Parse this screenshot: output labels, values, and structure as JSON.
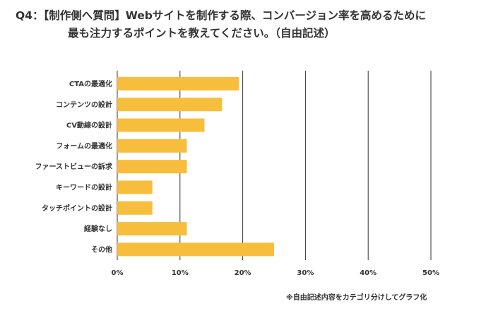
{
  "title": {
    "line1": "Q4：【制作側へ質問】Webサイトを制作する際、コンバージョン率を高めるために",
    "line2": "最も注力するポイントを教えてください。（自由記述）"
  },
  "note": "※自由記述内容をカテゴリ分けしてグラフ化",
  "colors": {
    "bar": "#F6BE3C",
    "grid": "#333333"
  },
  "chart_data": {
    "type": "bar",
    "orientation": "horizontal",
    "categories": [
      "CTAの最適化",
      "コンテンツの設計",
      "CV動線の設計",
      "フォームの最適化",
      "ファーストビューの訴求",
      "キーワードの設計",
      "タッチポイントの設計",
      "経験なし",
      "その他"
    ],
    "values": [
      19.4,
      16.7,
      13.9,
      11.1,
      11.1,
      5.6,
      5.6,
      11.1,
      25.0
    ],
    "unit": "%",
    "xlim": [
      0,
      50
    ],
    "xticks": [
      "0%",
      "10%",
      "20%",
      "30%",
      "40%",
      "50%"
    ],
    "grid": true,
    "legend": "none"
  }
}
